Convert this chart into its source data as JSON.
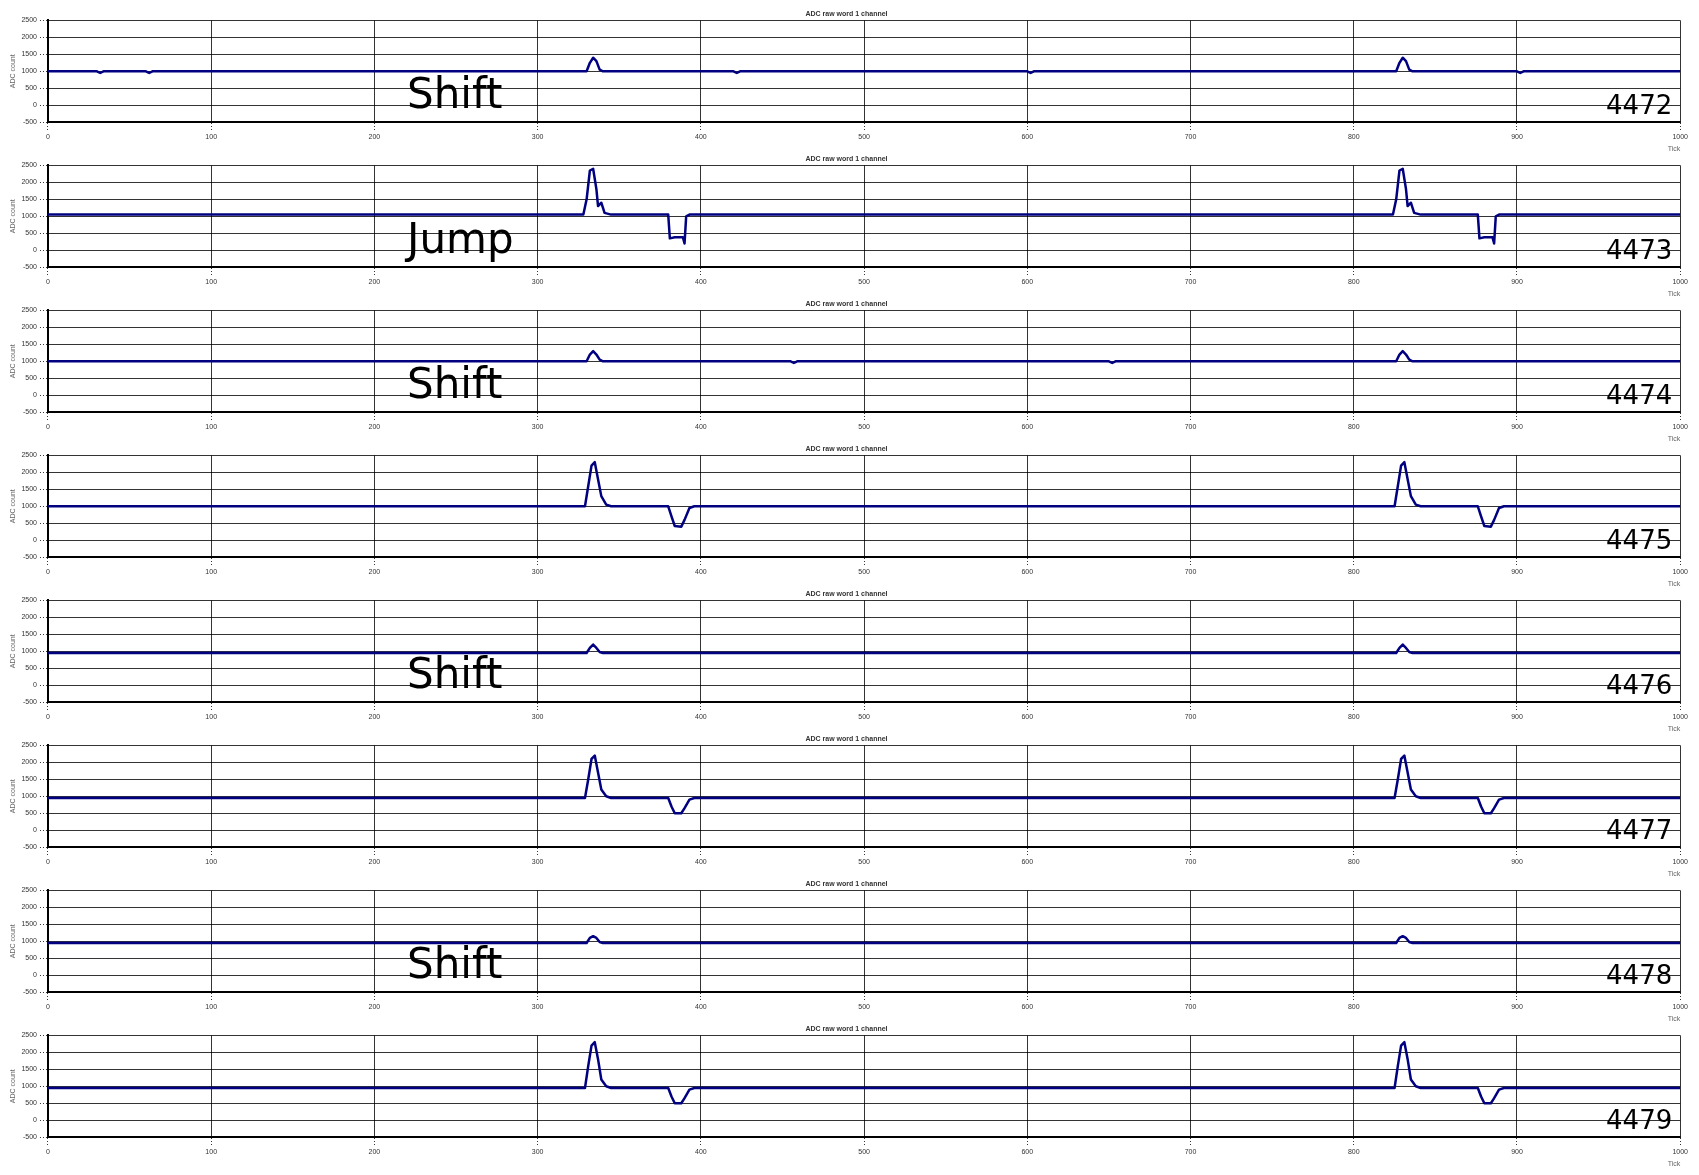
{
  "chart_data": [
    {
      "type": "line",
      "title": "ADC raw word 1 channel",
      "xlabel": "Tick",
      "ylabel": "ADC count",
      "xlim": [
        0,
        1000
      ],
      "xticks": [
        0,
        100,
        200,
        300,
        400,
        500,
        600,
        700,
        800,
        900,
        1000
      ],
      "ylim": [
        -500,
        2500
      ],
      "yticks": [
        -500,
        0,
        500,
        1000,
        1500,
        2000,
        2500
      ],
      "grid": true,
      "legend": false,
      "marker": "none",
      "line_style": "solid",
      "annotations": [
        "Shift",
        "4472"
      ],
      "series": [
        {
          "color": "#000080",
          "x": [
            0,
            30,
            32,
            34,
            60,
            62,
            64,
            330,
            332,
            334,
            336,
            338,
            340,
            420,
            422,
            424,
            600,
            602,
            604,
            826,
            828,
            830,
            832,
            834,
            836,
            900,
            902,
            904,
            1000
          ],
          "values": [
            1000,
            1000,
            950,
            1000,
            1000,
            950,
            1000,
            1000,
            1250,
            1400,
            1300,
            1050,
            1000,
            1000,
            950,
            1000,
            1000,
            950,
            1000,
            1000,
            1250,
            1400,
            1300,
            1050,
            1000,
            1000,
            950,
            1000,
            1000
          ]
        }
      ]
    },
    {
      "type": "line",
      "title": "ADC raw word 1 channel",
      "xlabel": "Tick",
      "ylabel": "ADC count",
      "xlim": [
        0,
        1000
      ],
      "xticks": [
        0,
        100,
        200,
        300,
        400,
        500,
        600,
        700,
        800,
        900,
        1000
      ],
      "ylim": [
        -500,
        2500
      ],
      "yticks": [
        -500,
        0,
        500,
        1000,
        1500,
        2000,
        2500
      ],
      "grid": true,
      "legend": false,
      "marker": "none",
      "line_style": "solid",
      "annotations": [
        "Jump",
        "4473"
      ],
      "series": [
        {
          "color": "#000080",
          "x": [
            0,
            328,
            330,
            332,
            334,
            336,
            337,
            339,
            341,
            345,
            380,
            381,
            384,
            389,
            390,
            391,
            393,
            824,
            826,
            828,
            830,
            832,
            833,
            835,
            837,
            841,
            876,
            877,
            880,
            885,
            886,
            887,
            889,
            1000
          ],
          "values": [
            1050,
            1050,
            1500,
            2350,
            2400,
            1800,
            1300,
            1400,
            1100,
            1050,
            1050,
            350,
            380,
            380,
            200,
            1000,
            1050,
            1050,
            1500,
            2350,
            2400,
            1800,
            1300,
            1400,
            1100,
            1050,
            1050,
            350,
            380,
            380,
            200,
            1000,
            1050,
            1050
          ]
        }
      ]
    },
    {
      "type": "line",
      "title": "ADC raw word 1 channel",
      "xlabel": "Tick",
      "ylabel": "ADC count",
      "xlim": [
        0,
        1000
      ],
      "xticks": [
        0,
        100,
        200,
        300,
        400,
        500,
        600,
        700,
        800,
        900,
        1000
      ],
      "ylim": [
        -500,
        2500
      ],
      "yticks": [
        -500,
        0,
        500,
        1000,
        1500,
        2000,
        2500
      ],
      "grid": true,
      "legend": false,
      "marker": "none",
      "line_style": "solid",
      "annotations": [
        "Shift",
        "4474"
      ],
      "series": [
        {
          "color": "#000080",
          "x": [
            0,
            330,
            332,
            334,
            336,
            338,
            340,
            455,
            457,
            459,
            650,
            652,
            654,
            826,
            828,
            830,
            832,
            834,
            836,
            1000
          ],
          "values": [
            1000,
            1000,
            1200,
            1300,
            1200,
            1050,
            1000,
            1000,
            950,
            1000,
            1000,
            950,
            1000,
            1000,
            1200,
            1300,
            1200,
            1050,
            1000,
            1000
          ]
        }
      ]
    },
    {
      "type": "line",
      "title": "ADC raw word 1 channel",
      "xlabel": "Tick",
      "ylabel": "ADC count",
      "xlim": [
        0,
        1000
      ],
      "xticks": [
        0,
        100,
        200,
        300,
        400,
        500,
        600,
        700,
        800,
        900,
        1000
      ],
      "ylim": [
        -500,
        2500
      ],
      "yticks": [
        -500,
        0,
        500,
        1000,
        1500,
        2000,
        2500
      ],
      "grid": true,
      "legend": false,
      "marker": "none",
      "line_style": "solid",
      "annotations": [
        "4475"
      ],
      "series": [
        {
          "color": "#000080",
          "x": [
            0,
            329,
            331,
            333,
            335,
            337,
            339,
            342,
            345,
            380,
            382,
            384,
            388,
            390,
            393,
            396,
            825,
            827,
            829,
            831,
            833,
            835,
            838,
            841,
            876,
            878,
            880,
            884,
            886,
            889,
            892,
            1000
          ],
          "values": [
            1000,
            1000,
            1600,
            2200,
            2300,
            1800,
            1300,
            1050,
            1000,
            1000,
            700,
            420,
            400,
            600,
            950,
            1000,
            1000,
            1600,
            2200,
            2300,
            1800,
            1300,
            1050,
            1000,
            1000,
            700,
            420,
            400,
            600,
            950,
            1000,
            1000
          ]
        }
      ]
    },
    {
      "type": "line",
      "title": "ADC raw word 1 channel",
      "xlabel": "Tick",
      "ylabel": "ADC count",
      "xlim": [
        0,
        1000
      ],
      "xticks": [
        0,
        100,
        200,
        300,
        400,
        500,
        600,
        700,
        800,
        900,
        1000
      ],
      "ylim": [
        -500,
        2500
      ],
      "yticks": [
        -500,
        0,
        500,
        1000,
        1500,
        2000,
        2500
      ],
      "grid": true,
      "legend": false,
      "marker": "none",
      "line_style": "solid",
      "annotations": [
        "Shift",
        "4476"
      ],
      "series": [
        {
          "color": "#000080",
          "x": [
            0,
            330,
            332,
            334,
            336,
            338,
            340,
            826,
            828,
            830,
            832,
            834,
            836,
            1000
          ],
          "values": [
            950,
            950,
            1100,
            1200,
            1100,
            980,
            950,
            950,
            1100,
            1200,
            1100,
            980,
            950,
            950
          ]
        }
      ]
    },
    {
      "type": "line",
      "title": "ADC raw word 1 channel",
      "xlabel": "Tick",
      "ylabel": "ADC count",
      "xlim": [
        0,
        1000
      ],
      "xticks": [
        0,
        100,
        200,
        300,
        400,
        500,
        600,
        700,
        800,
        900,
        1000
      ],
      "ylim": [
        -500,
        2500
      ],
      "yticks": [
        -500,
        0,
        500,
        1000,
        1500,
        2000,
        2500
      ],
      "grid": true,
      "legend": false,
      "marker": "none",
      "line_style": "solid",
      "annotations": [
        "4477"
      ],
      "series": [
        {
          "color": "#000080",
          "x": [
            0,
            329,
            331,
            333,
            335,
            337,
            339,
            342,
            345,
            380,
            382,
            384,
            388,
            390,
            393,
            396,
            825,
            827,
            829,
            831,
            833,
            835,
            838,
            841,
            876,
            878,
            880,
            884,
            886,
            889,
            892,
            1000
          ],
          "values": [
            950,
            950,
            1500,
            2100,
            2200,
            1700,
            1200,
            1000,
            950,
            950,
            700,
            500,
            500,
            650,
            900,
            950,
            950,
            1500,
            2100,
            2200,
            1700,
            1200,
            1000,
            950,
            950,
            700,
            500,
            500,
            650,
            900,
            950,
            950
          ]
        }
      ]
    },
    {
      "type": "line",
      "title": "ADC raw word 1 channel",
      "xlabel": "Tick",
      "ylabel": "ADC count",
      "xlim": [
        0,
        1000
      ],
      "xticks": [
        0,
        100,
        200,
        300,
        400,
        500,
        600,
        700,
        800,
        900,
        1000
      ],
      "ylim": [
        -500,
        2500
      ],
      "yticks": [
        -500,
        0,
        500,
        1000,
        1500,
        2000,
        2500
      ],
      "grid": true,
      "legend": false,
      "marker": "none",
      "line_style": "solid",
      "annotations": [
        "Shift",
        "4478"
      ],
      "series": [
        {
          "color": "#000080",
          "x": [
            0,
            330,
            332,
            334,
            336,
            338,
            340,
            826,
            828,
            830,
            832,
            834,
            836,
            1000
          ],
          "values": [
            950,
            950,
            1100,
            1150,
            1100,
            980,
            950,
            950,
            1100,
            1150,
            1100,
            980,
            950,
            950
          ]
        }
      ]
    },
    {
      "type": "line",
      "title": "ADC raw word 1 channel",
      "xlabel": "Tick",
      "ylabel": "ADC count",
      "xlim": [
        0,
        1000
      ],
      "xticks": [
        0,
        100,
        200,
        300,
        400,
        500,
        600,
        700,
        800,
        900,
        1000
      ],
      "ylim": [
        -500,
        2500
      ],
      "yticks": [
        -500,
        0,
        500,
        1000,
        1500,
        2000,
        2500
      ],
      "grid": true,
      "legend": false,
      "marker": "none",
      "line_style": "solid",
      "annotations": [
        "4479"
      ],
      "series": [
        {
          "color": "#000080",
          "x": [
            0,
            329,
            331,
            333,
            335,
            337,
            339,
            342,
            345,
            380,
            382,
            384,
            388,
            390,
            393,
            396,
            825,
            827,
            829,
            831,
            833,
            835,
            838,
            841,
            876,
            878,
            880,
            884,
            886,
            889,
            892,
            1000
          ],
          "values": [
            950,
            950,
            1600,
            2200,
            2300,
            1800,
            1200,
            1000,
            950,
            950,
            700,
            500,
            500,
            650,
            900,
            950,
            950,
            1600,
            2200,
            2300,
            1800,
            1200,
            1000,
            950,
            950,
            700,
            500,
            500,
            650,
            900,
            950,
            950
          ]
        }
      ]
    }
  ]
}
